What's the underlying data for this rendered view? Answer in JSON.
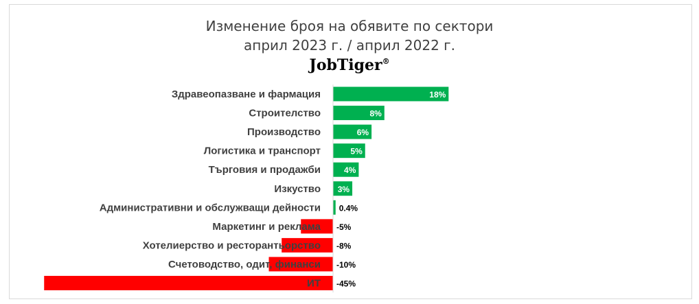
{
  "title_line1": "Изменение броя на обявите по сектори",
  "title_line2": "април 2023 г. / април 2022 г.",
  "brand": "JobTiger",
  "brand_mark": "®",
  "colors": {
    "positive": "#00b050",
    "negative": "#ff0000",
    "category_text": "#404040",
    "label_inside": "#ffffff",
    "label_outside": "#000000",
    "axis": "#d9d9d9"
  },
  "chart_data": {
    "type": "bar",
    "orientation": "horizontal",
    "categories": [
      "Здравеопазване и фармация",
      "Строителство",
      "Производство",
      "Логистика и транспорт",
      "Търговия и продажби",
      "Изкуство",
      "Административни и обслужващи дейности",
      "Маркетинг и реклама",
      "Хотелиерство и ресторантьорство",
      "Счетоводство, одит, финанси",
      "ИТ"
    ],
    "values": [
      18,
      8,
      6,
      5,
      4,
      3,
      0.4,
      -5,
      -8,
      -10,
      -45
    ],
    "value_labels": [
      "18%",
      "8%",
      "6%",
      "5%",
      "4%",
      "3%",
      "0.4%",
      "-5%",
      "-8%",
      "-10%",
      "-45%"
    ],
    "xlim": [
      -45,
      20
    ],
    "unit": "%",
    "grid": false,
    "legend": "none"
  }
}
